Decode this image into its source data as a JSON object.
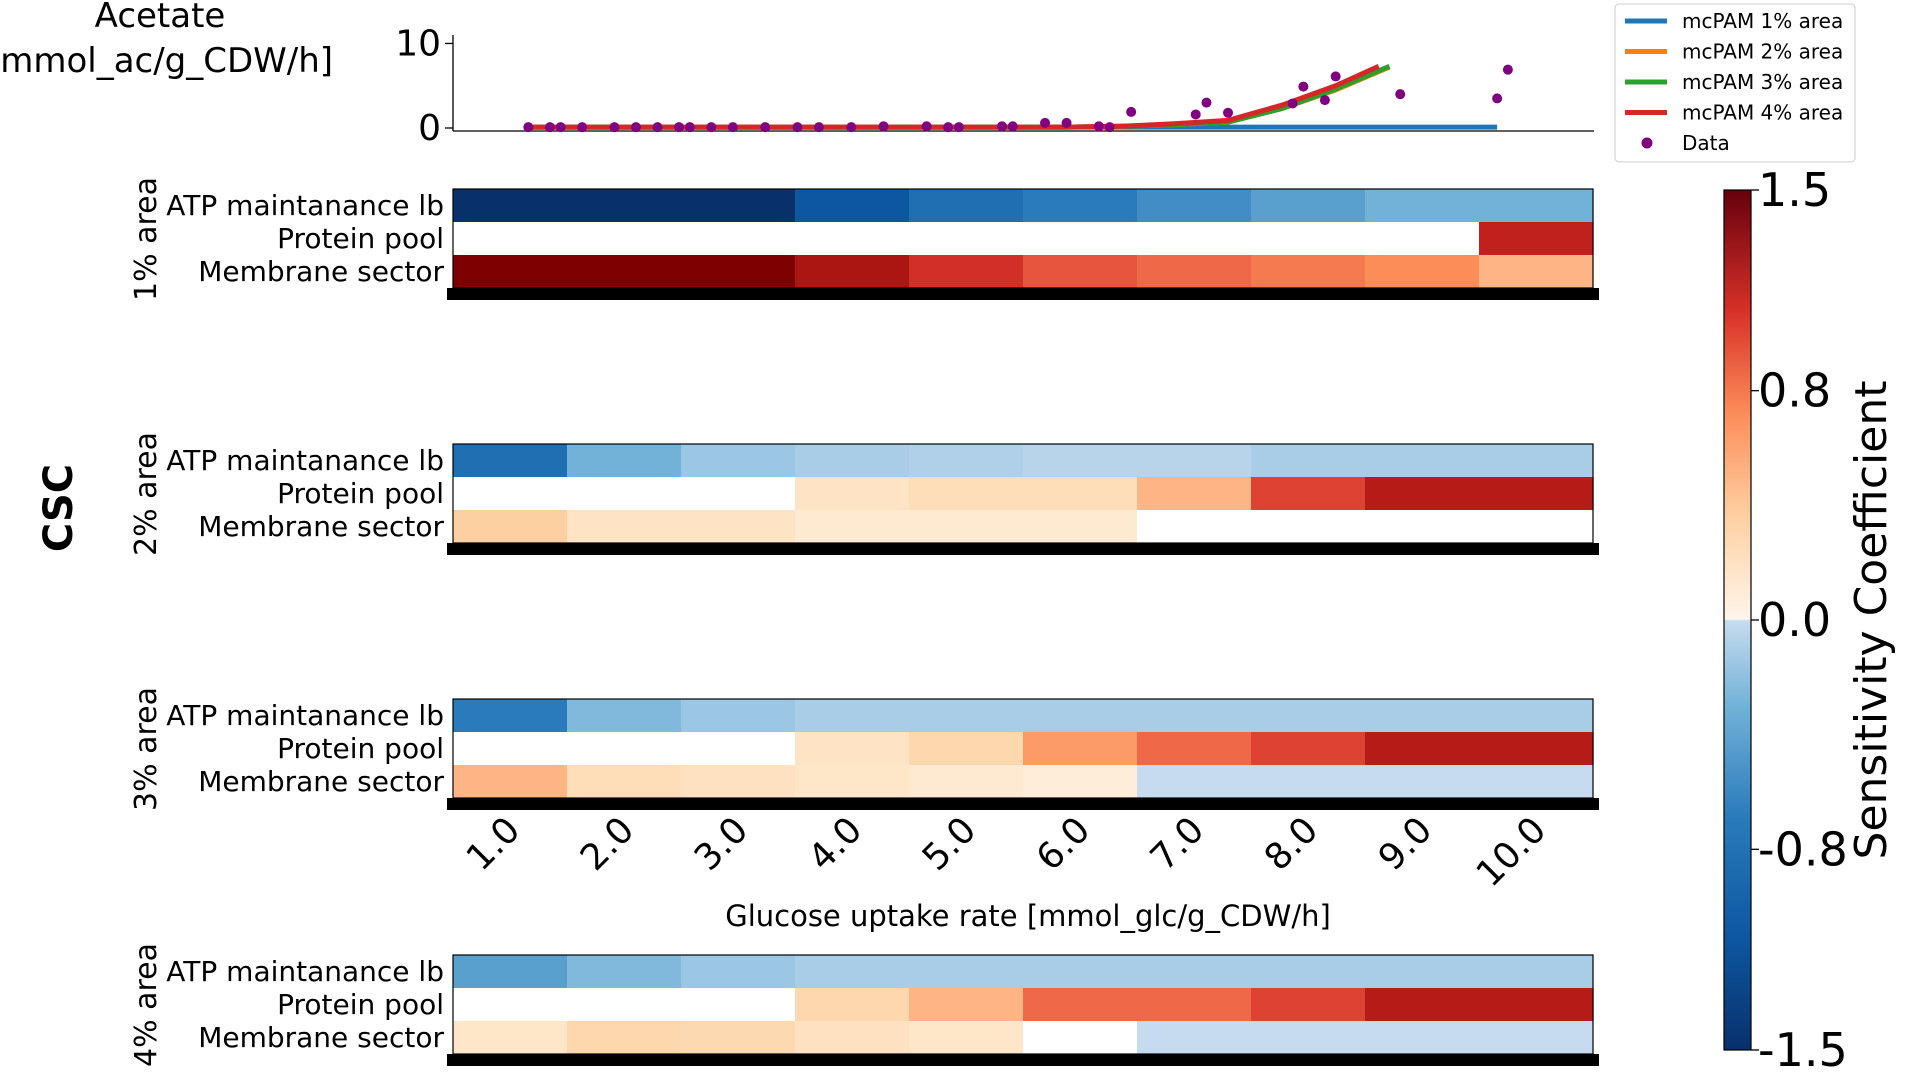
{
  "chart_data": [
    {
      "type": "line",
      "ylabel_line1": "Acetate",
      "ylabel_line2": "[mmol_ac/g_CDW/h]",
      "ylim": [
        0,
        11
      ],
      "xlim": [
        0.3,
        10.9
      ],
      "yticks": [
        "0",
        "10"
      ],
      "legend_position": "top-right",
      "series": [
        {
          "name": "mcPAM 1% area",
          "color": "#1f77b4",
          "x": [
            1.0,
            2.0,
            3.0,
            4.0,
            5.0,
            6.0,
            7.0,
            8.0,
            9.0,
            10.0
          ],
          "y": [
            0.1,
            0.1,
            0.1,
            0.1,
            0.1,
            0.1,
            0.1,
            0.1,
            0.1,
            0.1
          ]
        },
        {
          "name": "mcPAM 2% area",
          "color": "#ff7f0e",
          "x": [
            1.0,
            2.0,
            3.0,
            4.0,
            5.0,
            6.0,
            6.5,
            7.0,
            7.5,
            8.0,
            8.5,
            9.0
          ],
          "y": [
            0.1,
            0.1,
            0.1,
            0.1,
            0.1,
            0.1,
            0.2,
            0.4,
            0.7,
            2.3,
            4.5,
            7.2
          ]
        },
        {
          "name": "mcPAM 3% area",
          "color": "#2ca02c",
          "x": [
            1.0,
            2.0,
            3.0,
            4.0,
            5.0,
            6.0,
            6.5,
            7.0,
            7.5,
            8.0,
            8.5,
            9.0
          ],
          "y": [
            0.1,
            0.1,
            0.1,
            0.1,
            0.1,
            0.1,
            0.2,
            0.4,
            0.7,
            2.3,
            4.6,
            7.3
          ]
        },
        {
          "name": "mcPAM 4% area",
          "color": "#d62728",
          "x": [
            1.0,
            2.0,
            3.0,
            4.0,
            5.0,
            6.0,
            6.5,
            7.0,
            7.5,
            8.0,
            8.5,
            8.9
          ],
          "y": [
            0.1,
            0.1,
            0.1,
            0.1,
            0.1,
            0.1,
            0.2,
            0.5,
            0.9,
            2.7,
            5.0,
            7.3
          ]
        },
        {
          "name": "Data",
          "color": "#800080",
          "kind": "scatter",
          "x": [
            1.0,
            1.2,
            1.3,
            1.5,
            1.8,
            2.0,
            2.2,
            2.4,
            2.5,
            2.7,
            2.9,
            3.2,
            3.5,
            3.7,
            4.0,
            4.3,
            4.7,
            4.9,
            5.0,
            5.4,
            5.5,
            5.8,
            6.0,
            6.3,
            6.4,
            6.6,
            7.2,
            7.3,
            7.5,
            8.1,
            8.2,
            8.4,
            8.5,
            9.1,
            10.0,
            10.1
          ],
          "y": [
            0.1,
            0.1,
            0.1,
            0.1,
            0.1,
            0.1,
            0.1,
            0.1,
            0.1,
            0.1,
            0.1,
            0.1,
            0.1,
            0.1,
            0.1,
            0.2,
            0.2,
            0.1,
            0.1,
            0.2,
            0.2,
            0.6,
            0.6,
            0.2,
            0.1,
            1.9,
            1.6,
            3.0,
            1.8,
            2.9,
            4.9,
            3.3,
            6.1,
            4.0,
            3.5,
            6.9
          ]
        }
      ]
    },
    {
      "type": "heatmap",
      "group_label": "CSC",
      "xlabel": "Glucose uptake rate [mmol_glc/g_CDW/h]",
      "categories": [
        "1.0",
        "2.0",
        "3.0",
        "4.0",
        "5.0",
        "6.0",
        "7.0",
        "8.0",
        "9.0",
        "10.0"
      ],
      "rows": [
        "ATP maintanance lb",
        "Protein pool",
        "Membrane sector"
      ],
      "colorbar": {
        "label": "Sensitivity Coefficient",
        "range": [
          -1.5,
          1.5
        ],
        "ticks": [
          "1.5",
          "0.8",
          "0.0",
          "-0.8",
          "-1.5"
        ]
      },
      "panels": [
        {
          "label": "1% area",
          "values": [
            [
              -1.5,
              -1.5,
              -1.5,
              -1.2,
              -1.0,
              -0.9,
              -0.8,
              -0.7,
              -0.6,
              -0.6
            ],
            [
              0,
              0,
              0,
              0,
              0,
              0,
              0,
              0,
              0,
              1.2
            ],
            [
              1.5,
              1.5,
              1.5,
              1.3,
              1.1,
              0.9,
              0.8,
              0.7,
              0.6,
              0.45
            ]
          ]
        },
        {
          "label": "2% area",
          "values": [
            [
              -1.0,
              -0.6,
              -0.45,
              -0.4,
              -0.38,
              -0.35,
              -0.35,
              -0.4,
              -0.4,
              -0.4
            ],
            [
              0,
              0,
              0,
              0.2,
              0.25,
              0.25,
              0.45,
              1.0,
              1.25,
              1.25
            ],
            [
              0.35,
              0.2,
              0.2,
              0.15,
              0.15,
              0.15,
              0,
              0,
              0,
              0
            ]
          ]
        },
        {
          "label": "3% area",
          "values": [
            [
              -0.9,
              -0.55,
              -0.45,
              -0.4,
              -0.4,
              -0.4,
              -0.4,
              -0.4,
              -0.4,
              -0.4
            ],
            [
              0,
              0,
              0,
              0.2,
              0.3,
              0.55,
              0.8,
              1.0,
              1.25,
              1.25
            ],
            [
              0.45,
              0.25,
              0.22,
              0.18,
              0.15,
              0.12,
              -0.3,
              -0.3,
              -0.3,
              -0.3
            ]
          ]
        },
        {
          "label": "4% area",
          "values": [
            [
              -0.7,
              -0.55,
              -0.45,
              -0.4,
              -0.4,
              -0.4,
              -0.4,
              -0.4,
              -0.4,
              -0.4
            ],
            [
              0,
              0,
              0,
              0.3,
              0.45,
              0.8,
              0.8,
              1.0,
              1.25,
              1.25
            ],
            [
              0.18,
              0.3,
              0.28,
              0.22,
              0.18,
              0,
              -0.3,
              -0.3,
              -0.3,
              -0.3
            ]
          ]
        }
      ]
    }
  ]
}
